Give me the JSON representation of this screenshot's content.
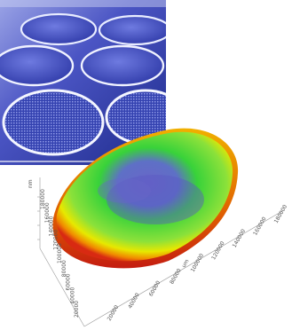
{
  "photo": {
    "subject": "wafer-tray-photo"
  },
  "surface_plot": {
    "x_ticks": [
      "20000",
      "40000",
      "60000",
      "80000",
      "100000",
      "120000",
      "140000",
      "160000",
      "180000"
    ],
    "x_axis_label": "um",
    "y_ticks": [
      "180000",
      "160000",
      "140000",
      "120000",
      "100000",
      "80000",
      "60000",
      "40000",
      "20000"
    ],
    "z_axis_label": "nm",
    "colors": {
      "low": "#6a66c8",
      "mid": "#38d23a",
      "high_yellow": "#e7e800",
      "high_orange": "#f08a00",
      "edge_red": "#d82a12"
    }
  }
}
